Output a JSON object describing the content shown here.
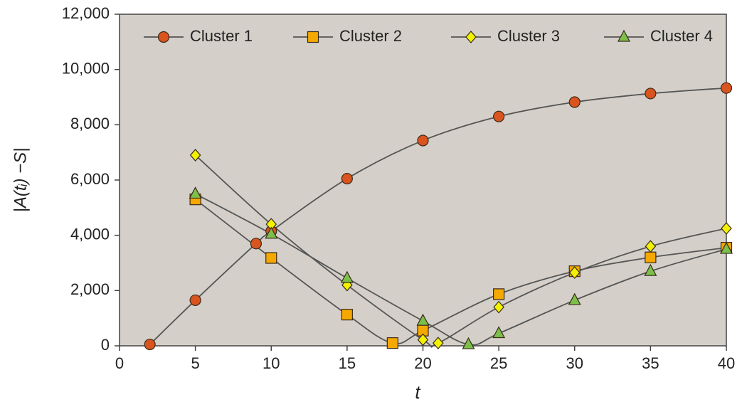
{
  "chart_data": {
    "type": "line",
    "xlabel": "t",
    "ylabel": "|A(tᵢ) −S|",
    "xlim": [
      0,
      40
    ],
    "xticks": [
      0,
      5,
      10,
      15,
      20,
      25,
      30,
      35,
      40
    ],
    "ylim": [
      0,
      12000
    ],
    "yticks": [
      0,
      {
        "value": 2000,
        "label": "2,000"
      },
      {
        "value": 4000,
        "label": "4,000"
      },
      {
        "value": 6000,
        "label": "6,000"
      },
      {
        "value": 8000,
        "label": "8,000"
      },
      {
        "value": 10000,
        "label": "10,000"
      },
      {
        "value": 12000,
        "label": "12,000"
      }
    ],
    "grid": false,
    "legend": "top",
    "series": [
      {
        "name": "Cluster 1",
        "color": "#d9541e",
        "marker": "circle",
        "x": [
          2,
          5,
          9,
          10,
          15,
          20,
          25,
          30,
          35,
          40
        ],
        "values": [
          50,
          1650,
          3700,
          4150,
          6050,
          7430,
          8300,
          8820,
          9130,
          9330
        ]
      },
      {
        "name": "Cluster 2",
        "color": "#f5a800",
        "marker": "square",
        "x": [
          5,
          10,
          15,
          18,
          20,
          25,
          30,
          35,
          40
        ],
        "values": [
          5300,
          3180,
          1130,
          100,
          550,
          1870,
          2700,
          3200,
          3550
        ]
      },
      {
        "name": "Cluster 3",
        "color": "#f2f200",
        "marker": "diamond",
        "x": [
          5,
          10,
          15,
          20,
          21,
          25,
          30,
          35,
          40
        ],
        "values": [
          6900,
          4400,
          2200,
          220,
          100,
          1400,
          2650,
          3600,
          4250
        ]
      },
      {
        "name": "Cluster 4",
        "color": "#7cc04a",
        "marker": "triangle",
        "x": [
          5,
          10,
          15,
          20,
          23,
          25,
          30,
          35,
          40
        ],
        "values": [
          5500,
          4050,
          2450,
          900,
          50,
          450,
          1650,
          2700,
          3500
        ]
      }
    ]
  }
}
